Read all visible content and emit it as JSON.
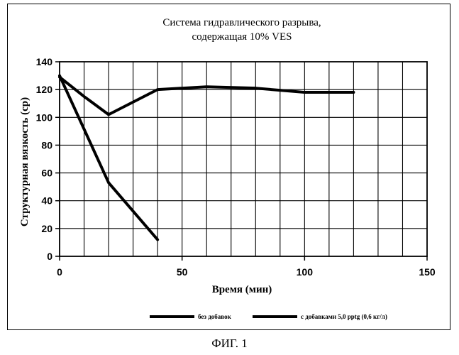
{
  "chart_data": {
    "type": "line",
    "title_lines": [
      "Система гидравлического разрыва,",
      "содержащая 10% VES"
    ],
    "xlabel": "Время (мин)",
    "ylabel": "Структурная вязкость (ср)",
    "xlim": [
      0,
      150
    ],
    "ylim": [
      0,
      140
    ],
    "x_ticks": [
      0,
      50,
      100,
      150
    ],
    "x_grid_step": 10,
    "y_ticks": [
      0,
      20,
      40,
      60,
      80,
      100,
      120,
      140
    ],
    "grid": true,
    "legend_position": "bottom",
    "series": [
      {
        "name": "без добавок",
        "x": [
          0,
          20,
          40
        ],
        "y": [
          130,
          53,
          12
        ]
      },
      {
        "name": "с добавками 5,0 pptg (0,6 кг/л)",
        "x": [
          0,
          10,
          20,
          40,
          60,
          80,
          100,
          120
        ],
        "y": [
          129,
          115,
          102,
          120,
          122,
          121,
          118,
          118
        ]
      }
    ],
    "line_color": "#000000"
  },
  "caption": "ФИГ. 1"
}
